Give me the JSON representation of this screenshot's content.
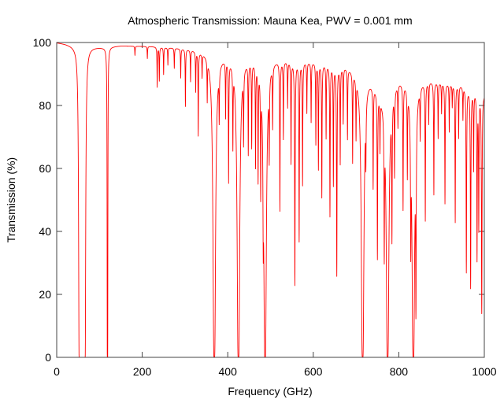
{
  "chart_data": {
    "type": "line",
    "title": "Atmospheric Transmission: Mauna Kea, PWV = 0.001 mm",
    "xlabel": "Frequency (GHz)",
    "ylabel": "Transmission (%)",
    "xlim": [
      0,
      1000
    ],
    "ylim": [
      0,
      100
    ],
    "xticks": [
      "0",
      "200",
      "400",
      "600",
      "800",
      "1000"
    ],
    "yticks": [
      "0",
      "20",
      "40",
      "60",
      "80",
      "100"
    ],
    "grid": false,
    "line_color": "#ff0000",
    "continuum": [
      [
        0,
        100
      ],
      [
        20,
        99.6
      ],
      [
        40,
        99
      ],
      [
        80,
        98.6
      ],
      [
        107,
        98.5
      ],
      [
        150,
        99
      ],
      [
        223,
        98.8
      ],
      [
        300,
        98.2
      ],
      [
        346,
        97.5
      ],
      [
        389,
        96.5
      ],
      [
        453,
        95.5
      ],
      [
        512,
        95
      ],
      [
        598,
        94
      ],
      [
        678,
        92.7
      ],
      [
        727,
        90
      ],
      [
        760,
        84.5
      ],
      [
        800,
        89
      ],
      [
        862,
        88.5
      ],
      [
        948,
        86.5
      ],
      [
        1000,
        84
      ]
    ],
    "absorption_bands": [
      {
        "from": 53,
        "to": 66,
        "min": 0
      },
      {
        "from": 118.5,
        "to": 119,
        "min": 0
      }
    ],
    "absorption_lines": [
      [
        183,
        96
      ],
      [
        212,
        95
      ],
      [
        235,
        86
      ],
      [
        240,
        88
      ],
      [
        250,
        90
      ],
      [
        260,
        93
      ],
      [
        275,
        92
      ],
      [
        290,
        89
      ],
      [
        301,
        80
      ],
      [
        313,
        88
      ],
      [
        325,
        85
      ],
      [
        331,
        71
      ],
      [
        340,
        90
      ],
      [
        352,
        84
      ],
      [
        368.5,
        0
      ],
      [
        380,
        80
      ],
      [
        395,
        78
      ],
      [
        402,
        57
      ],
      [
        412,
        70
      ],
      [
        425,
        0
      ],
      [
        437,
        72
      ],
      [
        448,
        66
      ],
      [
        456,
        68
      ],
      [
        465,
        62
      ],
      [
        471,
        58
      ],
      [
        477,
        55
      ],
      [
        483,
        50
      ],
      [
        487.3,
        0
      ],
      [
        497,
        68
      ],
      [
        505,
        75
      ],
      [
        522,
        47
      ],
      [
        530,
        70
      ],
      [
        540,
        80
      ],
      [
        548,
        62
      ],
      [
        557,
        23
      ],
      [
        567,
        37
      ],
      [
        575,
        55
      ],
      [
        585,
        78
      ],
      [
        595,
        75
      ],
      [
        606,
        68
      ],
      [
        612,
        60
      ],
      [
        620,
        51
      ],
      [
        630,
        70
      ],
      [
        639,
        45
      ],
      [
        647,
        55
      ],
      [
        655,
        26
      ],
      [
        663,
        62
      ],
      [
        670,
        75
      ],
      [
        680,
        70
      ],
      [
        692,
        63
      ],
      [
        700,
        72
      ],
      [
        715.4,
        0
      ],
      [
        723,
        70
      ],
      [
        740,
        55
      ],
      [
        750,
        32
      ],
      [
        756,
        68
      ],
      [
        766,
        35
      ],
      [
        773.8,
        0
      ],
      [
        784,
        40
      ],
      [
        790,
        60
      ],
      [
        798,
        75
      ],
      [
        810,
        48
      ],
      [
        820,
        60
      ],
      [
        828,
        40
      ],
      [
        834,
        0
      ],
      [
        840,
        16
      ],
      [
        850,
        72
      ],
      [
        862,
        44
      ],
      [
        870,
        75
      ],
      [
        882,
        52
      ],
      [
        892,
        70
      ],
      [
        900,
        78
      ],
      [
        908,
        49
      ],
      [
        918,
        72
      ],
      [
        925,
        80
      ],
      [
        932,
        43
      ],
      [
        940,
        70
      ],
      [
        950,
        76
      ],
      [
        958,
        27
      ],
      [
        968,
        22
      ],
      [
        975,
        60
      ],
      [
        983,
        31
      ],
      [
        987,
        41
      ],
      [
        994,
        14
      ]
    ]
  }
}
